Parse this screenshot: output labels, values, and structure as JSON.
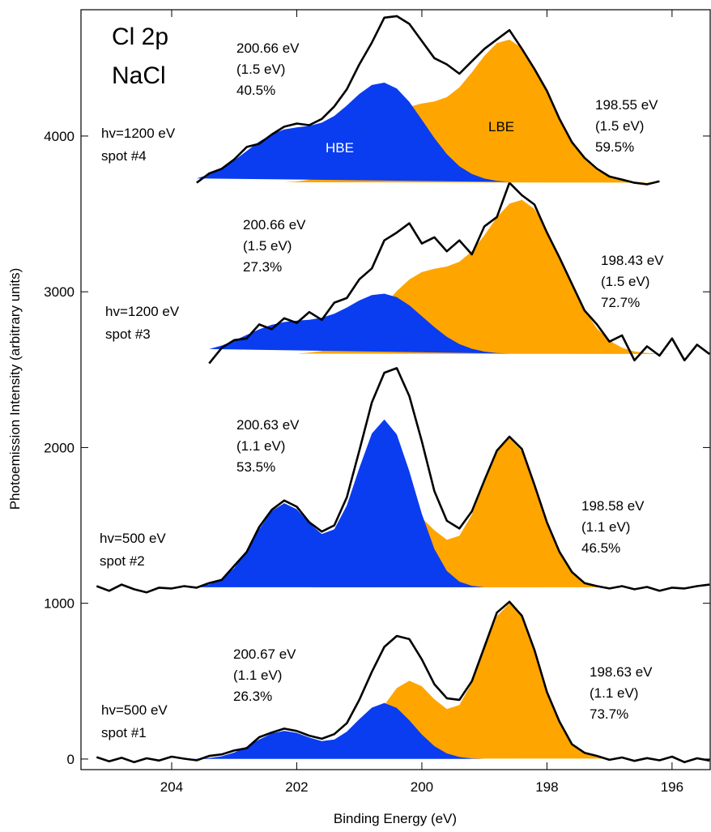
{
  "chart_data": {
    "type": "area",
    "title": [
      "Cl 2p",
      "NaCl"
    ],
    "xlabel": "Binding Energy (eV)",
    "ylabel": "Photoemission Intensity (arbitrary units)",
    "xlim": [
      205.45,
      195.39
    ],
    "ylim": [
      -68,
      4811
    ],
    "xticks": [
      204,
      202,
      200,
      198,
      196
    ],
    "yticks": [
      0,
      1000,
      2000,
      3000,
      4000
    ],
    "spectra": [
      {
        "label": [
          "hv=500 eV",
          "spot #1"
        ],
        "color": "#000000",
        "x": [
          205.2,
          205,
          204.8,
          204.6,
          204.4,
          204.2,
          204,
          203.8,
          203.6,
          203.4,
          203.2,
          203,
          202.8,
          202.6,
          202.4,
          202.2,
          202,
          201.8,
          201.6,
          201.4,
          201.2,
          201,
          200.8,
          200.6,
          200.4,
          200.2,
          200,
          199.8,
          199.6,
          199.4,
          199.2,
          199,
          198.8,
          198.6,
          198.4,
          198.2,
          198,
          197.8,
          197.6,
          197.4,
          197.2,
          197,
          196.8,
          196.6,
          196.4,
          196.2,
          196,
          195.8,
          195.6,
          195.4
        ],
        "values": [
          12,
          -15,
          8,
          -20,
          5,
          -10,
          15,
          2,
          -8,
          20,
          30,
          55,
          70,
          140,
          170,
          195,
          180,
          150,
          130,
          160,
          230,
          380,
          560,
          720,
          790,
          770,
          640,
          480,
          390,
          380,
          500,
          720,
          940,
          1010,
          920,
          700,
          430,
          240,
          95,
          40,
          20,
          -5,
          10,
          -12,
          6,
          -8,
          15,
          -20,
          5,
          -10
        ],
        "components": [
          {
            "name": "HBE",
            "color": "#0a3cf0",
            "annotation": [
              "200.67 eV",
              "(1.1 eV)",
              "26.3%"
            ],
            "x": [
              203.8,
              203.6,
              203.4,
              203.2,
              203,
              202.8,
              202.6,
              202.4,
              202.2,
              202,
              201.8,
              201.6,
              201.4,
              201.2,
              201,
              200.8,
              200.6,
              200.4,
              200.2,
              200,
              199.8,
              199.6,
              199.4,
              199.2,
              199
            ],
            "values": [
              1,
              2,
              7,
              18,
              42,
              79,
              125,
              164,
              181,
              168,
              138,
              115,
              125,
              176,
              256,
              330,
              360,
              328,
              249,
              158,
              83,
              36,
              13,
              4,
              1
            ]
          },
          {
            "name": "LBE",
            "color": "#ffa500",
            "annotation": [
              "198.63 eV",
              "(1.1 eV)",
              "73.7%"
            ],
            "x": [
              201.8,
              201.6,
              201.4,
              201.2,
              201,
              200.8,
              200.6,
              200.4,
              200.2,
              200,
              199.8,
              199.6,
              199.4,
              199.2,
              199,
              198.8,
              198.6,
              198.4,
              198.2,
              198,
              197.8,
              197.6,
              197.4,
              197.2,
              197
            ],
            "values": [
              2,
              5,
              18,
              50,
              116,
              220,
              347,
              456,
              503,
              467,
              384,
              321,
              347,
              489,
              711,
              917,
              1000,
              912,
              693,
              439,
              231,
              101,
              37,
              11,
              3
            ]
          }
        ]
      },
      {
        "label": [
          "hv=500 eV",
          "spot #2"
        ],
        "color": "#000000",
        "x": [
          205.2,
          205,
          204.8,
          204.6,
          204.4,
          204.2,
          204,
          203.8,
          203.6,
          203.4,
          203.2,
          203,
          202.8,
          202.6,
          202.4,
          202.2,
          202,
          201.8,
          201.6,
          201.4,
          201.2,
          201,
          200.8,
          200.6,
          200.4,
          200.2,
          200,
          199.8,
          199.6,
          199.4,
          199.2,
          199,
          198.8,
          198.6,
          198.4,
          198.2,
          198,
          197.8,
          197.6,
          197.4,
          197.2,
          197,
          196.8,
          196.6,
          196.4,
          196.2,
          196,
          195.8,
          195.6,
          195.4
        ],
        "values": [
          1110,
          1080,
          1120,
          1090,
          1070,
          1100,
          1095,
          1110,
          1100,
          1130,
          1150,
          1240,
          1330,
          1490,
          1600,
          1660,
          1620,
          1520,
          1460,
          1500,
          1680,
          1980,
          2290,
          2480,
          2510,
          2330,
          2040,
          1720,
          1530,
          1480,
          1590,
          1790,
          1980,
          2070,
          1990,
          1760,
          1520,
          1330,
          1200,
          1130,
          1110,
          1095,
          1110,
          1090,
          1105,
          1080,
          1100,
          1095,
          1110,
          1120
        ],
        "components": [
          {
            "name": "HBE",
            "color": "#0a3cf0",
            "annotation": [
              "200.63 eV",
              "(1.1 eV)",
              "53.5%"
            ],
            "x": [
              203.8,
              203.6,
              203.4,
              203.2,
              203,
              202.8,
              202.6,
              202.4,
              202.2,
              202,
              201.8,
              201.6,
              201.4,
              201.2,
              201,
              200.8,
              200.6,
              200.4,
              200.2,
              200,
              199.8,
              199.6,
              199.4,
              199.2,
              199
            ],
            "values": [
              1103,
              1106,
              1121,
              1154,
              1226,
              1337,
              1475,
              1592,
              1643,
              1604,
              1514,
              1445,
              1475,
              1628,
              1868,
              2090,
              2180,
              2084,
              1847,
              1574,
              1349,
              1208,
              1139,
              1112,
              1103
            ]
          },
          {
            "name": "LBE",
            "color": "#ffa500",
            "annotation": [
              "198.58 eV",
              "(1.1 eV)",
              "46.5%"
            ],
            "x": [
              201.8,
              201.6,
              201.4,
              201.2,
              201,
              200.8,
              200.6,
              200.4,
              200.2,
              200,
              199.8,
              199.6,
              199.4,
              199.2,
              199,
              198.8,
              198.6,
              198.4,
              198.2,
              198,
              197.8,
              197.6,
              197.4,
              197.2,
              197
            ],
            "values": [
              1102,
              1105,
              1117,
              1148,
              1211,
              1311,
              1433,
              1538,
              1583,
              1548,
              1469,
              1408,
              1433,
              1569,
              1783,
              1980,
              2060,
              1976,
              1765,
              1521,
              1322,
              1197,
              1136,
              1111,
              1103
            ]
          }
        ]
      },
      {
        "label": [
          "hv=1200 eV",
          "spot #3"
        ],
        "color": "#000000",
        "x": [
          203.4,
          203.2,
          203,
          202.8,
          202.6,
          202.4,
          202.2,
          202,
          201.8,
          201.6,
          201.4,
          201.2,
          201,
          200.8,
          200.6,
          200.4,
          200.2,
          200,
          199.8,
          199.6,
          199.4,
          199.2,
          199,
          198.8,
          198.6,
          198.4,
          198.2,
          198,
          197.8,
          197.6,
          197.4,
          197.2,
          197,
          196.8,
          196.6,
          196.4,
          196.2,
          196,
          195.8,
          195.6,
          195.4
        ],
        "values": [
          2540,
          2640,
          2690,
          2700,
          2790,
          2760,
          2830,
          2800,
          2870,
          2820,
          2930,
          2960,
          3080,
          3150,
          3330,
          3380,
          3440,
          3310,
          3350,
          3260,
          3330,
          3240,
          3420,
          3480,
          3700,
          3620,
          3560,
          3380,
          3220,
          3050,
          2880,
          2790,
          2680,
          2720,
          2560,
          2650,
          2590,
          2700,
          2560,
          2660,
          2600
        ],
        "components": [
          {
            "name": "HBE",
            "color": "#0a3cf0",
            "annotation": [
              "200.66 eV",
              "(1.5 eV)",
              "27.3%"
            ],
            "x": [
              203.4,
              203.2,
              203,
              202.8,
              202.6,
              202.4,
              202.2,
              202,
              201.8,
              201.6,
              201.4,
              201.2,
              201,
              200.8,
              200.6,
              200.4,
              200.2,
              200,
              199.8,
              199.6,
              199.4,
              199.2,
              199,
              198.8,
              198.6
            ],
            "values": [
              2632,
              2655,
              2686,
              2723,
              2759,
              2788,
              2806,
              2815,
              2820,
              2833,
              2859,
              2899,
              2944,
              2979,
              2988,
              2965,
              2913,
              2844,
              2773,
              2711,
              2664,
              2634,
              2616,
              2607,
              2603
            ]
          },
          {
            "name": "LBE",
            "color": "#ffa500",
            "annotation": [
              "198.43 eV",
              "(1.5 eV)",
              "72.7%"
            ],
            "x": [
              202,
              201.8,
              201.6,
              201.4,
              201.2,
              201,
              200.8,
              200.6,
              200.4,
              200.2,
              200,
              199.8,
              199.6,
              199.4,
              199.2,
              199,
              198.8,
              198.6,
              198.4,
              198.2,
              198,
              197.8,
              197.6,
              197.4,
              197.2,
              197,
              196.8,
              196.6,
              196.4,
              196.2,
              196
            ],
            "values": [
              2603,
              2609,
              2620,
              2643,
              2682,
              2741,
              2821,
              2914,
              3005,
              3079,
              3126,
              3148,
              3162,
              3193,
              3260,
              3364,
              3478,
              3566,
              3590,
              3532,
              3399,
              3224,
              3040,
              2882,
              2764,
              2686,
              2641,
              2617,
              2607,
              2603,
              2601
            ]
          }
        ]
      },
      {
        "label": [
          "hv=1200 eV",
          "spot #4"
        ],
        "color": "#000000",
        "x": [
          203.6,
          203.4,
          203.2,
          203,
          202.8,
          202.6,
          202.4,
          202.2,
          202,
          201.8,
          201.6,
          201.4,
          201.2,
          201,
          200.8,
          200.6,
          200.4,
          200.2,
          200,
          199.8,
          199.6,
          199.4,
          199.2,
          199,
          198.8,
          198.6,
          198.4,
          198.2,
          198,
          197.8,
          197.6,
          197.4,
          197.2,
          197,
          196.8,
          196.6,
          196.4,
          196.2
        ],
        "values": [
          3700,
          3760,
          3790,
          3850,
          3930,
          3950,
          4010,
          4060,
          4080,
          4070,
          4110,
          4190,
          4300,
          4460,
          4600,
          4760,
          4770,
          4720,
          4610,
          4500,
          4460,
          4400,
          4480,
          4560,
          4620,
          4680,
          4560,
          4430,
          4290,
          4110,
          3960,
          3860,
          3790,
          3740,
          3720,
          3700,
          3690,
          3710
        ],
        "components": [
          {
            "name": "HBE",
            "color": "#0a3cf0",
            "annotation": [
              "200.66 eV",
              "(1.5 eV)",
              "40.5%"
            ],
            "x": [
              203.6,
              203.4,
              203.2,
              203,
              202.8,
              202.6,
              202.4,
              202.2,
              202,
              201.8,
              201.6,
              201.4,
              201.2,
              201,
              200.8,
              200.6,
              200.4,
              200.2,
              200,
              199.8,
              199.6,
              199.4,
              199.2,
              199,
              198.8,
              198.6
            ],
            "values": [
              3728,
              3753,
              3791,
              3843,
              3904,
              3964,
              4012,
              4042,
              4056,
              4065,
              4086,
              4129,
              4196,
              4270,
              4328,
              4343,
              4305,
              4219,
              4105,
              3987,
              3884,
              3806,
              3756,
              3727,
              3712,
              3705
            ]
          },
          {
            "name": "LBE",
            "color": "#ffa500",
            "annotation": [
              "198.55 eV",
              "(1.5 eV)",
              "59.5%"
            ],
            "x": [
              202.2,
              202,
              201.8,
              201.6,
              201.4,
              201.2,
              201,
              200.8,
              200.6,
              200.4,
              200.2,
              200,
              199.8,
              199.6,
              199.4,
              199.2,
              199,
              198.8,
              198.6,
              198.4,
              198.2,
              198,
              197.8,
              197.6,
              197.4,
              197.2,
              197,
              196.8,
              196.6,
              196.4,
              196.2
            ],
            "values": [
              3703,
              3708,
              3719,
              3740,
              3776,
              3831,
              3905,
              3991,
              4076,
              4145,
              4188,
              4209,
              4222,
              4250,
              4312,
              4409,
              4515,
              4596,
              4619,
              4565,
              4441,
              4279,
              4108,
              3962,
              3852,
              3780,
              3738,
              3716,
              3706,
              3703,
              3701
            ]
          }
        ]
      }
    ]
  }
}
